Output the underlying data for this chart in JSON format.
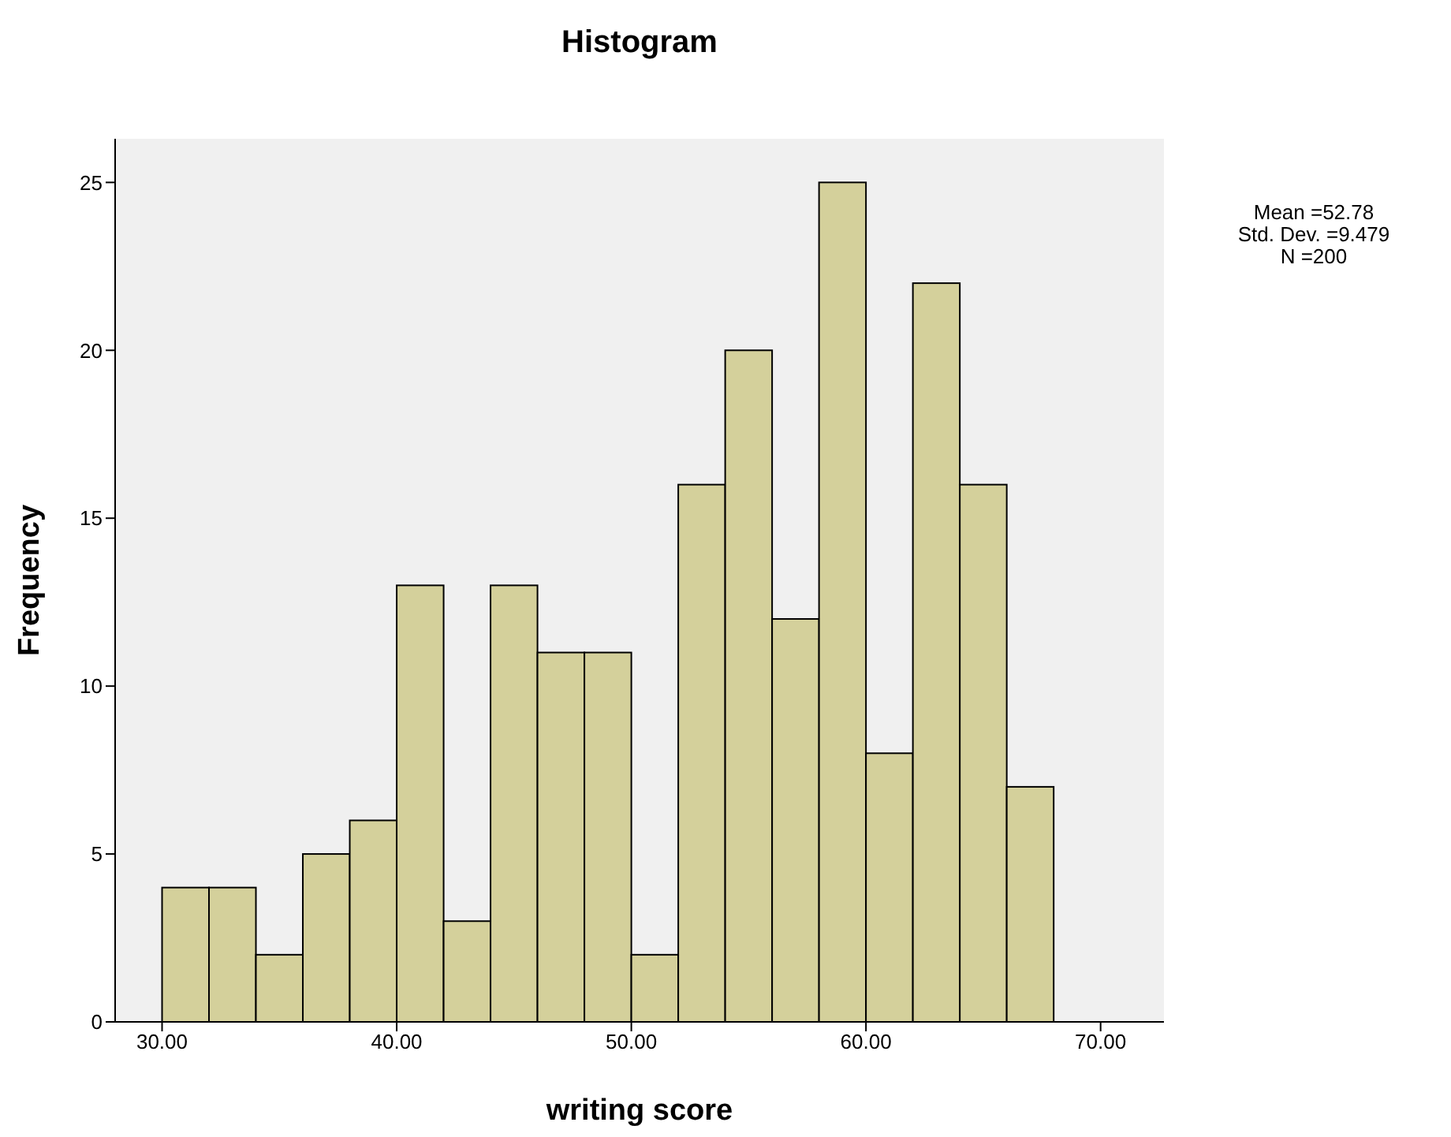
{
  "chart_data": {
    "type": "histogram",
    "title": "Histogram",
    "xlabel": "writing score",
    "ylabel": "Frequency",
    "bins": [
      30,
      32,
      34,
      36,
      38,
      40,
      42,
      44,
      46,
      48,
      50,
      52,
      54,
      56,
      58,
      60,
      62,
      64,
      66,
      68
    ],
    "values": [
      4,
      4,
      2,
      5,
      6,
      13,
      3,
      13,
      11,
      11,
      2,
      16,
      20,
      12,
      25,
      8,
      22,
      16,
      7
    ],
    "color": "#d4d09b",
    "xlim": [
      28,
      72.7
    ],
    "xticks": [
      {
        "value": 30,
        "label": "30.00"
      },
      {
        "value": 40,
        "label": "40.00"
      },
      {
        "value": 50,
        "label": "50.00"
      },
      {
        "value": 60,
        "label": "60.00"
      },
      {
        "value": 70,
        "label": "70.00"
      }
    ],
    "ylim": [
      0,
      26.3
    ],
    "yticks": [
      0,
      5,
      10,
      15,
      20,
      25
    ],
    "annotations": [
      "Mean =52.78",
      "Std. Dev. =9.479",
      "N =200"
    ],
    "grid": false,
    "legend": false
  }
}
